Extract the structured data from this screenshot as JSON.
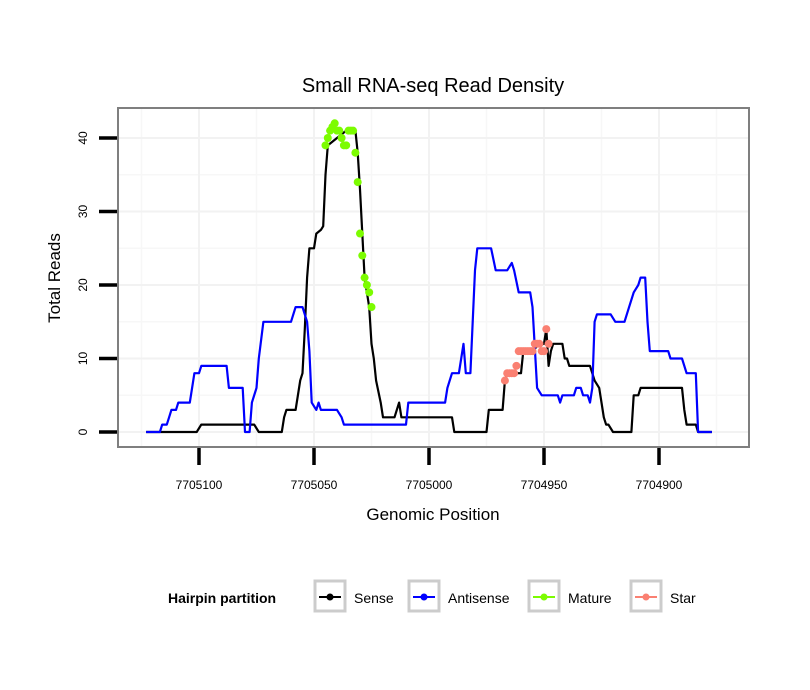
{
  "chart_data": {
    "type": "line",
    "title": "Small RNA-seq Read Density",
    "xlabel": "Genomic Position",
    "ylabel": "Total Reads",
    "x_reversed": true,
    "xlim": [
      7705133,
      7704859
    ],
    "ylim": [
      -2,
      44
    ],
    "x_ticks": [
      7705100,
      7705050,
      7705000,
      7704950,
      7704900
    ],
    "x_tick_labels": [
      "7705100",
      "7705050",
      "7705000",
      "7704950",
      "7704900"
    ],
    "y_ticks": [
      0,
      10,
      20,
      30,
      40
    ],
    "y_tick_labels": [
      "0",
      "10",
      "20",
      "30",
      "40"
    ],
    "grid": true,
    "legend": {
      "title": "Hairpin partition",
      "placement": "bottom",
      "entries": [
        {
          "label": "Sense",
          "color": "#000000"
        },
        {
          "label": "Antisense",
          "color": "#0000ff"
        },
        {
          "label": "Mature",
          "color": "#7cfc00"
        },
        {
          "label": "Star",
          "color": "#fa8072"
        }
      ]
    },
    "series": [
      {
        "name": "Sense",
        "color": "#000000",
        "style": "line",
        "points": [
          [
            7705123,
            0
          ],
          [
            7705101,
            0
          ],
          [
            7705099,
            1
          ],
          [
            7705080,
            1
          ],
          [
            7705076,
            1
          ],
          [
            7705074,
            0
          ],
          [
            7705064,
            0
          ],
          [
            7705063,
            2
          ],
          [
            7705062,
            3
          ],
          [
            7705058,
            3
          ],
          [
            7705057,
            5
          ],
          [
            7705056,
            7
          ],
          [
            7705055,
            8
          ],
          [
            7705054,
            14
          ],
          [
            7705053,
            21
          ],
          [
            7705052,
            25
          ],
          [
            7705050,
            25
          ],
          [
            7705049,
            27
          ],
          [
            7705047,
            27.5
          ],
          [
            7705046,
            28
          ],
          [
            7705045,
            35
          ],
          [
            7705044,
            39
          ],
          [
            7705036,
            41
          ],
          [
            7705032,
            41
          ],
          [
            7705031,
            38
          ],
          [
            7705030,
            33
          ],
          [
            7705029,
            27
          ],
          [
            7705028,
            21
          ],
          [
            7705026,
            17
          ],
          [
            7705025,
            12
          ],
          [
            7705024,
            10
          ],
          [
            7705023,
            7
          ],
          [
            7705021,
            4
          ],
          [
            7705020,
            2
          ],
          [
            7705015,
            2
          ],
          [
            7705013,
            4
          ],
          [
            7705012,
            2
          ],
          [
            7705000,
            2
          ],
          [
            7704990,
            2
          ],
          [
            7704989,
            0
          ],
          [
            7704975,
            0
          ],
          [
            7704974,
            3
          ],
          [
            7704968,
            3
          ],
          [
            7704967,
            7
          ],
          [
            7704966,
            8
          ],
          [
            7704960,
            8
          ],
          [
            7704959,
            11
          ],
          [
            7704955,
            11
          ],
          [
            7704952,
            12
          ],
          [
            7704950,
            12
          ],
          [
            7704949,
            14
          ],
          [
            7704948,
            9
          ],
          [
            7704947,
            11
          ],
          [
            7704946,
            12
          ],
          [
            7704942,
            12
          ],
          [
            7704941,
            10
          ],
          [
            7704940,
            10
          ],
          [
            7704939,
            9
          ],
          [
            7704930,
            9
          ],
          [
            7704928,
            7
          ],
          [
            7704926,
            6
          ],
          [
            7704925,
            4
          ],
          [
            7704924,
            2
          ],
          [
            7704923,
            1
          ],
          [
            7704922,
            1
          ],
          [
            7704920,
            0
          ],
          [
            7704912,
            0
          ],
          [
            7704911,
            5
          ],
          [
            7704909,
            5
          ],
          [
            7704908,
            6
          ],
          [
            7704890,
            6
          ],
          [
            7704889,
            3
          ],
          [
            7704888,
            1
          ],
          [
            7704884,
            1
          ],
          [
            7704883,
            0
          ],
          [
            7704877,
            0
          ]
        ]
      },
      {
        "name": "Antisense",
        "color": "#0000ff",
        "style": "line",
        "points": [
          [
            7705123,
            0
          ],
          [
            7705117,
            0
          ],
          [
            7705116,
            1
          ],
          [
            7705114,
            1
          ],
          [
            7705113,
            2
          ],
          [
            7705112,
            3
          ],
          [
            7705110,
            3
          ],
          [
            7705109,
            4
          ],
          [
            7705104,
            4
          ],
          [
            7705103,
            6
          ],
          [
            7705102,
            8
          ],
          [
            7705100,
            8
          ],
          [
            7705099,
            9
          ],
          [
            7705088,
            9
          ],
          [
            7705087,
            6
          ],
          [
            7705081,
            6
          ],
          [
            7705080,
            0
          ],
          [
            7705078,
            0
          ],
          [
            7705077,
            4
          ],
          [
            7705075,
            6
          ],
          [
            7705074,
            10
          ],
          [
            7705072,
            15
          ],
          [
            7705060,
            15
          ],
          [
            7705058,
            17
          ],
          [
            7705055,
            17
          ],
          [
            7705054,
            16
          ],
          [
            7705053,
            15
          ],
          [
            7705052,
            11
          ],
          [
            7705051,
            4
          ],
          [
            7705049,
            3
          ],
          [
            7705048,
            4
          ],
          [
            7705047,
            3
          ],
          [
            7705040,
            3
          ],
          [
            7705038,
            2
          ],
          [
            7705037,
            1
          ],
          [
            7705010,
            1
          ],
          [
            7705009,
            4
          ],
          [
            7704993,
            4
          ],
          [
            7704992,
            6
          ],
          [
            7704990,
            8
          ],
          [
            7704987,
            8
          ],
          [
            7704985,
            12
          ],
          [
            7704984,
            8
          ],
          [
            7704982,
            8
          ],
          [
            7704980,
            22
          ],
          [
            7704979,
            25
          ],
          [
            7704973,
            25
          ],
          [
            7704971,
            22
          ],
          [
            7704966,
            22
          ],
          [
            7704964,
            23
          ],
          [
            7704963,
            22
          ],
          [
            7704961,
            19
          ],
          [
            7704956,
            19
          ],
          [
            7704955,
            17
          ],
          [
            7704953,
            6
          ],
          [
            7704951,
            5
          ],
          [
            7704944,
            5
          ],
          [
            7704943,
            4
          ],
          [
            7704942,
            5
          ],
          [
            7704937,
            5
          ],
          [
            7704936,
            6
          ],
          [
            7704934,
            6
          ],
          [
            7704933,
            5
          ],
          [
            7704931,
            5
          ],
          [
            7704930,
            4
          ],
          [
            7704929,
            6
          ],
          [
            7704928,
            15
          ],
          [
            7704927,
            16
          ],
          [
            7704921,
            16
          ],
          [
            7704919,
            15
          ],
          [
            7704915,
            15
          ],
          [
            7704914,
            16
          ],
          [
            7704913,
            17
          ],
          [
            7704911,
            19
          ],
          [
            7704909,
            20
          ],
          [
            7704908,
            21
          ],
          [
            7704906,
            21
          ],
          [
            7704905,
            15
          ],
          [
            7704904,
            11
          ],
          [
            7704902,
            11
          ],
          [
            7704896,
            11
          ],
          [
            7704895,
            10
          ],
          [
            7704890,
            10
          ],
          [
            7704888,
            8
          ],
          [
            7704884,
            8
          ],
          [
            7704883,
            0
          ],
          [
            7704877,
            0
          ]
        ]
      },
      {
        "name": "Mature",
        "color": "#7cfc00",
        "style": "points",
        "points": [
          [
            7705045,
            39
          ],
          [
            7705044,
            40
          ],
          [
            7705043,
            41
          ],
          [
            7705042,
            41.5
          ],
          [
            7705041,
            42
          ],
          [
            7705040,
            41
          ],
          [
            7705039,
            41
          ],
          [
            7705038,
            40
          ],
          [
            7705037,
            39
          ],
          [
            7705036,
            39
          ],
          [
            7705035,
            41
          ],
          [
            7705034,
            41
          ],
          [
            7705033,
            41
          ],
          [
            7705032,
            38
          ],
          [
            7705031,
            34
          ],
          [
            7705030,
            27
          ],
          [
            7705029,
            24
          ],
          [
            7705028,
            21
          ],
          [
            7705027,
            20
          ],
          [
            7705026,
            19
          ],
          [
            7705025,
            17
          ]
        ]
      },
      {
        "name": "Star",
        "color": "#fa8072",
        "style": "points",
        "points": [
          [
            7704967,
            7
          ],
          [
            7704966,
            8
          ],
          [
            7704965,
            8
          ],
          [
            7704964,
            8
          ],
          [
            7704963,
            8
          ],
          [
            7704962,
            9
          ],
          [
            7704961,
            11
          ],
          [
            7704960,
            11
          ],
          [
            7704959,
            11
          ],
          [
            7704958,
            11
          ],
          [
            7704957,
            11
          ],
          [
            7704956,
            11
          ],
          [
            7704955,
            11
          ],
          [
            7704954,
            12
          ],
          [
            7704953,
            12
          ],
          [
            7704952,
            12
          ],
          [
            7704951,
            11
          ],
          [
            7704950,
            11
          ],
          [
            7704949,
            14
          ],
          [
            7704948,
            12
          ]
        ]
      }
    ]
  }
}
